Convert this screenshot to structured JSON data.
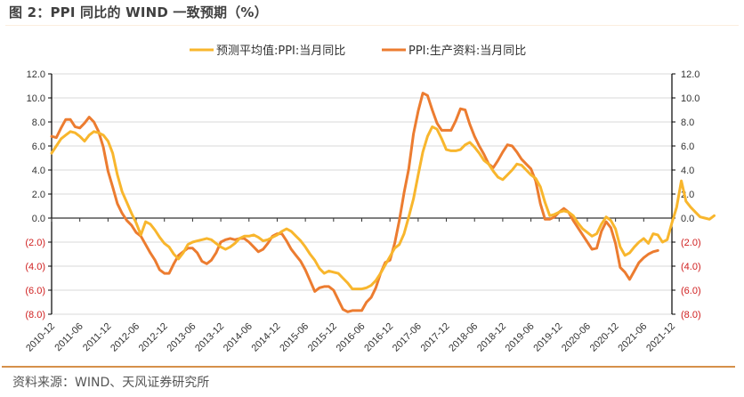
{
  "title": "图 2：PPI 同比的 WIND 一致预期（%）",
  "source": "资料来源：WIND、天风证券研究所",
  "chart_data": {
    "type": "line",
    "title": "PPI 同比的 WIND 一致预期（%）",
    "xlabel": "",
    "ylabel": "",
    "ylim": [
      -8,
      12
    ],
    "y2lim": [
      -8,
      12
    ],
    "grid": true,
    "legend_position": "top-center",
    "y_ticks": [
      12,
      10,
      8,
      6,
      4,
      2,
      0,
      -2,
      -4,
      -6,
      -8
    ],
    "y_tick_labels": [
      "12.0",
      "10.0",
      "8.0",
      "6.0",
      "4.0",
      "2.0",
      "0.0",
      "(2.0)",
      "(4.0)",
      "(6.0)",
      "(8.0)"
    ],
    "x_tick_labels": [
      "2010-12",
      "2011-06",
      "2011-12",
      "2012-06",
      "2012-12",
      "2013-06",
      "2013-12",
      "2014-06",
      "2014-12",
      "2015-06",
      "2015-12",
      "2016-06",
      "2016-12",
      "2017-06",
      "2017-12",
      "2018-06",
      "2018-12",
      "2019-06",
      "2019-12",
      "2020-06",
      "2020-12",
      "2021-06",
      "2021-12"
    ],
    "x_start": "2010-12",
    "x_end": "2021-12",
    "colors": {
      "forecast": "#f8b62d",
      "means": "#ec7c30",
      "negative_label": "#d02020"
    },
    "series": [
      {
        "name": "预测平均值:PPI:当月同比",
        "start": "2010-12",
        "values": [
          5.4,
          6.0,
          6.6,
          6.9,
          7.2,
          7.1,
          6.8,
          6.4,
          6.9,
          7.2,
          7.1,
          6.9,
          6.4,
          5.4,
          3.6,
          2.2,
          1.3,
          0.4,
          -0.4,
          -1.4,
          -0.3,
          -0.5,
          -1.0,
          -1.6,
          -2.1,
          -2.4,
          -3.0,
          -3.4,
          -2.9,
          -2.2,
          -2.0,
          -1.9,
          -1.8,
          -1.7,
          -1.8,
          -2.1,
          -2.4,
          -2.6,
          -2.4,
          -2.1,
          -1.7,
          -1.5,
          -1.5,
          -1.4,
          -1.6,
          -1.9,
          -1.8,
          -1.6,
          -1.4,
          -1.1,
          -0.9,
          -1.1,
          -1.5,
          -1.9,
          -2.4,
          -3.0,
          -3.5,
          -4.2,
          -4.6,
          -4.4,
          -4.5,
          -4.6,
          -5.0,
          -5.4,
          -5.9,
          -5.9,
          -5.9,
          -5.8,
          -5.6,
          -5.2,
          -4.6,
          -3.9,
          -3.2,
          -2.5,
          -2.2,
          -1.3,
          0.1,
          1.6,
          3.6,
          5.5,
          6.8,
          7.6,
          7.4,
          6.6,
          5.7,
          5.6,
          5.6,
          5.7,
          6.1,
          6.3,
          5.9,
          5.4,
          4.8,
          4.5,
          3.9,
          3.4,
          3.2,
          3.6,
          4.0,
          4.5,
          4.4,
          4.0,
          3.6,
          3.3,
          2.6,
          1.3,
          0.2,
          0.3,
          0.5,
          0.6,
          0.5,
          0.2,
          -0.4,
          -0.9,
          -1.2,
          -1.5,
          -1.3,
          -0.5,
          0.1,
          -0.2,
          -0.9,
          -2.4,
          -3.1,
          -2.9,
          -2.4,
          -2.0,
          -1.7,
          -2.1,
          -1.3,
          -1.4,
          -2.0,
          -1.8,
          -0.4,
          0.9,
          3.1,
          1.4,
          0.9,
          0.5,
          0.1,
          0.0,
          -0.1,
          0.2
        ]
      },
      {
        "name": "PPI:生产资料:当月同比",
        "start": "2010-12",
        "values": [
          6.8,
          6.7,
          7.5,
          8.2,
          8.2,
          7.6,
          7.5,
          7.9,
          8.4,
          8.0,
          7.2,
          5.9,
          3.9,
          2.6,
          1.2,
          0.4,
          -0.2,
          -0.6,
          -1.2,
          -1.5,
          -2.2,
          -2.9,
          -3.5,
          -4.3,
          -4.6,
          -4.6,
          -3.8,
          -3.1,
          -2.8,
          -2.5,
          -2.5,
          -2.9,
          -3.6,
          -3.8,
          -3.5,
          -2.9,
          -2.0,
          -1.8,
          -1.7,
          -1.8,
          -1.7,
          -1.7,
          -2.0,
          -2.4,
          -2.8,
          -2.6,
          -2.1,
          -1.5,
          -1.3,
          -1.3,
          -1.9,
          -2.6,
          -3.1,
          -3.6,
          -4.3,
          -5.2,
          -6.1,
          -5.8,
          -5.7,
          -5.7,
          -6.0,
          -6.8,
          -7.6,
          -7.8,
          -7.7,
          -7.7,
          -7.7,
          -7.0,
          -6.6,
          -5.8,
          -4.6,
          -3.7,
          -3.5,
          -2.1,
          -0.2,
          2.1,
          4.1,
          7.0,
          8.9,
          10.4,
          10.2,
          9.0,
          7.9,
          7.3,
          7.3,
          7.3,
          8.1,
          9.1,
          9.0,
          7.8,
          6.8,
          6.0,
          5.3,
          4.5,
          4.2,
          4.8,
          5.5,
          6.1,
          6.0,
          5.5,
          4.9,
          4.5,
          4.1,
          3.1,
          1.2,
          -0.1,
          -0.1,
          0.1,
          0.5,
          0.8,
          0.5,
          -0.2,
          -0.8,
          -1.4,
          -2.0,
          -2.6,
          -2.5,
          -1.1,
          -0.3,
          -0.8,
          -2.1,
          -4.1,
          -4.5,
          -5.1,
          -4.4,
          -3.7,
          -3.3,
          -3.0,
          -2.8,
          -2.7
        ]
      }
    ]
  }
}
